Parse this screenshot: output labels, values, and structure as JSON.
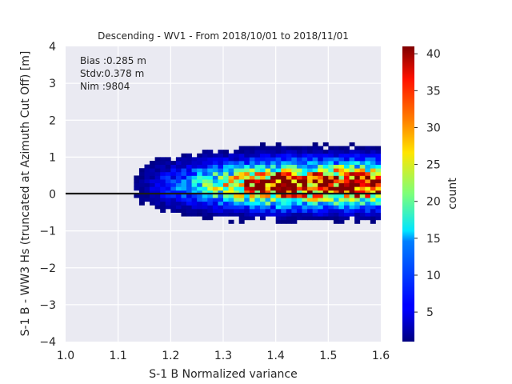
{
  "chart_data": {
    "type": "heatmap",
    "title": "Descending - WV1 - From 2018/10/01 to 2018/11/01",
    "xlabel": "S-1 B Normalized variance",
    "ylabel": "S-1 B - WW3 Hs (truncated at Azimuth Cut Off) [m]",
    "xlim": [
      1.0,
      1.6
    ],
    "ylim": [
      -4,
      4
    ],
    "x_ticks": [
      "1.0",
      "1.1",
      "1.2",
      "1.3",
      "1.4",
      "1.5",
      "1.6"
    ],
    "y_ticks": [
      "−4",
      "−3",
      "−2",
      "−1",
      "0",
      "1",
      "2",
      "3",
      "4"
    ],
    "grid": true,
    "zero_line": true,
    "colormap": "jet",
    "colorbar": {
      "label": "count",
      "range": [
        1,
        41
      ],
      "ticks": [
        "5",
        "10",
        "15",
        "20",
        "25",
        "30",
        "35",
        "40"
      ]
    },
    "annotations": {
      "bias": "Bias :0.285 m",
      "stdv": "Stdv:0.378 m",
      "nim": "Nim :9804"
    },
    "distribution": {
      "mean_bias": 0.285,
      "std": 0.378,
      "count": 9804
    }
  }
}
